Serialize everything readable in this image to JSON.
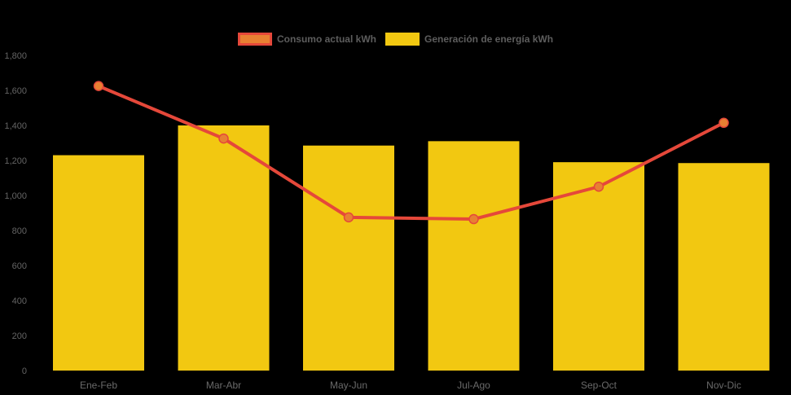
{
  "page": {
    "background": "#000000"
  },
  "legend": {
    "items": [
      {
        "label": "Consumo actual kWh",
        "swatch_fill": "#E88032",
        "swatch_border": "#E5483A"
      },
      {
        "label": "Generación de energía kWh",
        "swatch_fill": "#F2C811",
        "swatch_border": "#F2C811"
      }
    ]
  },
  "chart_data": {
    "type": "combo (bar + line)",
    "title": "",
    "xlabel": "",
    "ylabel": "",
    "categories": [
      "Ene-Feb",
      "Mar-Abr",
      "May-Jun",
      "Jul-Ago",
      "Sep-Oct",
      "Nov-Dic"
    ],
    "series": [
      {
        "name": "Consumo actual kWh",
        "type": "line",
        "color": "#E5483A",
        "point_color": "#E88032",
        "values": [
          1625,
          1325,
          875,
          865,
          1050,
          1415
        ]
      },
      {
        "name": "Generación de energía kWh",
        "type": "bar",
        "color": "#F2C811",
        "values": [
          1230,
          1400,
          1285,
          1310,
          1190,
          1185
        ]
      }
    ],
    "ylim": [
      0,
      1800
    ],
    "ytick_step": 200,
    "ytick_labels": [
      "0",
      "200",
      "400",
      "600",
      "800",
      "1,000",
      "1,200",
      "1,400",
      "1,600",
      "1,800"
    ],
    "grid": false,
    "legend_position": "top-center",
    "axis_text_color": "#666666"
  }
}
